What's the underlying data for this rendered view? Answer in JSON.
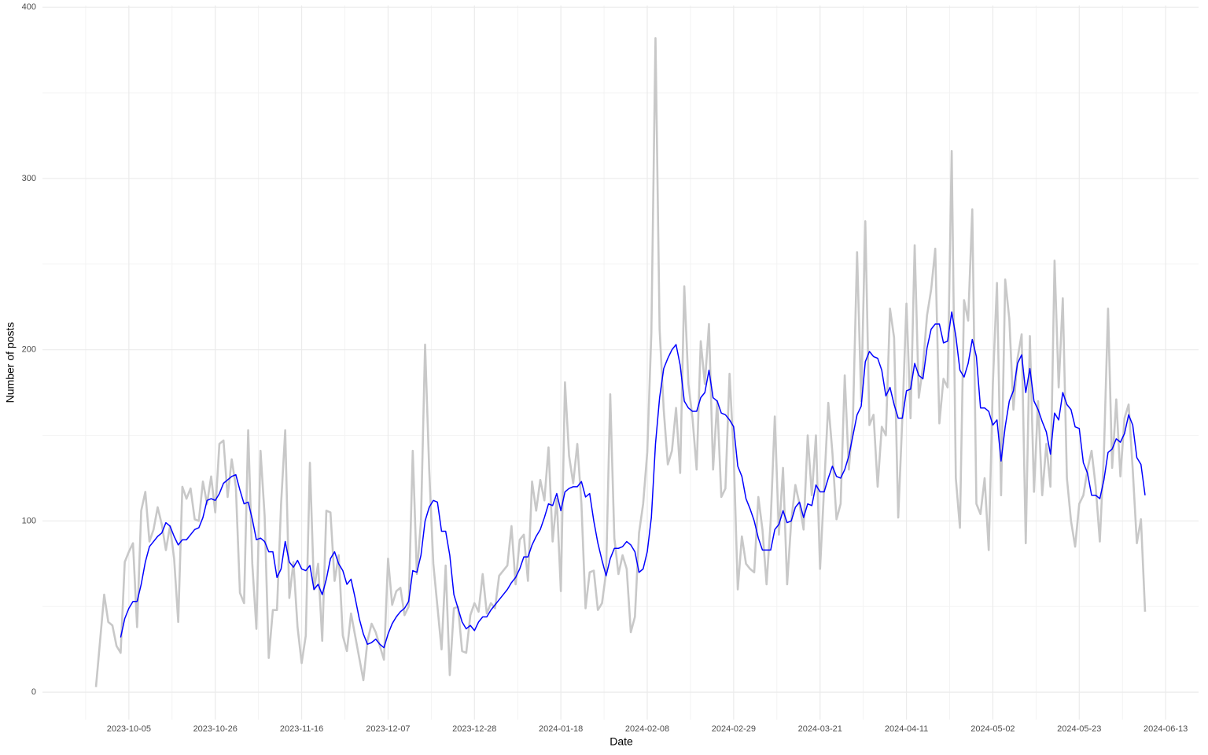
{
  "chart_data": {
    "type": "line",
    "xlabel": "Date",
    "ylabel": "Number of posts",
    "x": [
      "2023-09-27",
      "2023-09-28",
      "2023-09-29",
      "2023-09-30",
      "2023-10-01",
      "2023-10-02",
      "2023-10-03",
      "2023-10-04",
      "2023-10-05",
      "2023-10-06",
      "2023-10-07",
      "2023-10-08",
      "2023-10-09",
      "2023-10-10",
      "2023-10-11",
      "2023-10-12",
      "2023-10-13",
      "2023-10-14",
      "2023-10-15",
      "2023-10-16",
      "2023-10-17",
      "2023-10-18",
      "2023-10-19",
      "2023-10-20",
      "2023-10-21",
      "2023-10-22",
      "2023-10-23",
      "2023-10-24",
      "2023-10-25",
      "2023-10-26",
      "2023-10-27",
      "2023-10-28",
      "2023-10-29",
      "2023-10-30",
      "2023-10-31",
      "2023-11-01",
      "2023-11-02",
      "2023-11-03",
      "2023-11-04",
      "2023-11-05",
      "2023-11-06",
      "2023-11-07",
      "2023-11-08",
      "2023-11-09",
      "2023-11-10",
      "2023-11-11",
      "2023-11-12",
      "2023-11-13",
      "2023-11-14",
      "2023-11-15",
      "2023-11-16",
      "2023-11-17",
      "2023-11-18",
      "2023-11-19",
      "2023-11-20",
      "2023-11-21",
      "2023-11-22",
      "2023-11-23",
      "2023-11-24",
      "2023-11-25",
      "2023-11-26",
      "2023-11-27",
      "2023-11-28",
      "2023-11-29",
      "2023-11-30",
      "2023-12-01",
      "2023-12-02",
      "2023-12-03",
      "2023-12-04",
      "2023-12-05",
      "2023-12-06",
      "2023-12-07",
      "2023-12-08",
      "2023-12-09",
      "2023-12-10",
      "2023-12-11",
      "2023-12-12",
      "2023-12-13",
      "2023-12-14",
      "2023-12-15",
      "2023-12-16",
      "2023-12-17",
      "2023-12-18",
      "2023-12-19",
      "2023-12-20",
      "2023-12-21",
      "2023-12-22",
      "2023-12-23",
      "2023-12-24",
      "2023-12-25",
      "2023-12-26",
      "2023-12-27",
      "2023-12-28",
      "2023-12-29",
      "2023-12-30",
      "2023-12-31",
      "2024-01-01",
      "2024-01-02",
      "2024-01-03",
      "2024-01-04",
      "2024-01-05",
      "2024-01-06",
      "2024-01-07",
      "2024-01-08",
      "2024-01-09",
      "2024-01-10",
      "2024-01-11",
      "2024-01-12",
      "2024-01-13",
      "2024-01-14",
      "2024-01-15",
      "2024-01-16",
      "2024-01-17",
      "2024-01-18",
      "2024-01-19",
      "2024-01-20",
      "2024-01-21",
      "2024-01-22",
      "2024-01-23",
      "2024-01-24",
      "2024-01-25",
      "2024-01-26",
      "2024-01-27",
      "2024-01-28",
      "2024-01-29",
      "2024-01-30",
      "2024-01-31",
      "2024-02-01",
      "2024-02-02",
      "2024-02-03",
      "2024-02-04",
      "2024-02-05",
      "2024-02-06",
      "2024-02-07",
      "2024-02-08",
      "2024-02-09",
      "2024-02-10",
      "2024-02-11",
      "2024-02-12",
      "2024-02-13",
      "2024-02-14",
      "2024-02-15",
      "2024-02-16",
      "2024-02-17",
      "2024-02-18",
      "2024-02-19",
      "2024-02-20",
      "2024-02-21",
      "2024-02-22",
      "2024-02-23",
      "2024-02-24",
      "2024-02-25",
      "2024-02-26",
      "2024-02-27",
      "2024-02-28",
      "2024-02-29",
      "2024-03-01",
      "2024-03-02",
      "2024-03-03",
      "2024-03-04",
      "2024-03-05",
      "2024-03-06",
      "2024-03-07",
      "2024-03-08",
      "2024-03-09",
      "2024-03-10",
      "2024-03-11",
      "2024-03-12",
      "2024-03-13",
      "2024-03-14",
      "2024-03-15",
      "2024-03-16",
      "2024-03-17",
      "2024-03-18",
      "2024-03-19",
      "2024-03-20",
      "2024-03-21",
      "2024-03-22",
      "2024-03-23",
      "2024-03-24",
      "2024-03-25",
      "2024-03-26",
      "2024-03-27",
      "2024-03-28",
      "2024-03-29",
      "2024-03-30",
      "2024-03-31",
      "2024-04-01",
      "2024-04-02",
      "2024-04-03",
      "2024-04-04",
      "2024-04-05",
      "2024-04-06",
      "2024-04-07",
      "2024-04-08",
      "2024-04-09",
      "2024-04-10",
      "2024-04-11",
      "2024-04-12",
      "2024-04-13",
      "2024-04-14",
      "2024-04-15",
      "2024-04-16",
      "2024-04-17",
      "2024-04-18",
      "2024-04-19",
      "2024-04-20",
      "2024-04-21",
      "2024-04-22",
      "2024-04-23",
      "2024-04-24",
      "2024-04-25",
      "2024-04-26",
      "2024-04-27",
      "2024-04-28",
      "2024-04-29",
      "2024-04-30",
      "2024-05-01",
      "2024-05-02",
      "2024-05-03",
      "2024-05-04",
      "2024-05-05",
      "2024-05-06",
      "2024-05-07",
      "2024-05-08",
      "2024-05-09",
      "2024-05-10",
      "2024-05-11",
      "2024-05-12",
      "2024-05-13",
      "2024-05-14",
      "2024-05-15",
      "2024-05-16",
      "2024-05-17",
      "2024-05-18",
      "2024-05-19",
      "2024-05-20",
      "2024-05-21",
      "2024-05-22",
      "2024-05-23",
      "2024-05-24",
      "2024-05-25",
      "2024-05-26",
      "2024-05-27",
      "2024-05-28",
      "2024-05-29",
      "2024-05-30",
      "2024-05-31",
      "2024-06-01",
      "2024-06-02",
      "2024-06-03",
      "2024-06-04",
      "2024-06-05",
      "2024-06-06",
      "2024-06-07",
      "2024-06-08"
    ],
    "series": [
      {
        "color": "#c8c8c8",
        "values": [
          3,
          30,
          57,
          41,
          39,
          27,
          23,
          76,
          82,
          87,
          38,
          106,
          117,
          88,
          95,
          108,
          98,
          83,
          97,
          78,
          41,
          120,
          113,
          119,
          101,
          100,
          123,
          110,
          126,
          105,
          145,
          147,
          114,
          136,
          120,
          58,
          52,
          153,
          75,
          37,
          141,
          103,
          20,
          48,
          48,
          110,
          153,
          55,
          76,
          38,
          17,
          33,
          134,
          60,
          75,
          30,
          106,
          105,
          65,
          80,
          33,
          24,
          46,
          33,
          20,
          7,
          30,
          40,
          35,
          27,
          19,
          78,
          51,
          59,
          61,
          45,
          50,
          141,
          69,
          100,
          203,
          130,
          75,
          50,
          25,
          74,
          10,
          49,
          50,
          24,
          23,
          45,
          52,
          47,
          69,
          46,
          52,
          49,
          68,
          71,
          74,
          97,
          63,
          89,
          92,
          65,
          123,
          106,
          124,
          112,
          143,
          88,
          113,
          59,
          181,
          138,
          122,
          145,
          110,
          49,
          70,
          71,
          48,
          52,
          70,
          174,
          90,
          69,
          80,
          72,
          35,
          44,
          93,
          110,
          140,
          210,
          382,
          212,
          165,
          133,
          141,
          166,
          128,
          237,
          180,
          160,
          130,
          205,
          180,
          215,
          130,
          170,
          114,
          119,
          186,
          140,
          60,
          91,
          75,
          72,
          70,
          114,
          95,
          63,
          100,
          161,
          92,
          131,
          63,
          100,
          121,
          110,
          95,
          150,
          115,
          150,
          72,
          120,
          169,
          140,
          101,
          110,
          185,
          130,
          160,
          257,
          170,
          275,
          156,
          162,
          120,
          155,
          150,
          224,
          207,
          102,
          160,
          227,
          160,
          261,
          172,
          190,
          220,
          235,
          259,
          157,
          183,
          178,
          316,
          125,
          96,
          229,
          217,
          282,
          110,
          104,
          125,
          83,
          180,
          239,
          115,
          241,
          218,
          165,
          195,
          209,
          87,
          208,
          117,
          170,
          115,
          145,
          120,
          252,
          178,
          230,
          125,
          100,
          85,
          110,
          115,
          130,
          141,
          120,
          88,
          140,
          224,
          131,
          171,
          126,
          160,
          168,
          130,
          87,
          101,
          47
        ]
      },
      {
        "color": "#0000ff",
        "values": [
          null,
          null,
          null,
          null,
          null,
          null,
          32,
          43,
          49,
          53,
          53,
          63,
          76,
          85,
          88,
          91,
          93,
          99,
          97,
          91,
          86,
          89,
          89,
          92,
          95,
          96,
          102,
          112,
          113,
          112,
          116,
          122,
          124,
          126,
          127,
          118,
          110,
          111,
          101,
          89,
          90,
          88,
          82,
          82,
          67,
          72,
          88,
          76,
          73,
          77,
          72,
          71,
          74,
          60,
          63,
          57,
          66,
          78,
          82,
          75,
          71,
          63,
          66,
          55,
          43,
          34,
          28,
          29,
          31,
          28,
          26,
          34,
          40,
          44,
          47,
          49,
          53,
          71,
          70,
          80,
          100,
          108,
          112,
          111,
          94,
          94,
          80,
          57,
          49,
          41,
          37,
          39,
          36,
          41,
          44,
          44,
          48,
          51,
          54,
          57,
          60,
          64,
          67,
          72,
          79,
          79,
          86,
          91,
          95,
          102,
          110,
          109,
          116,
          106,
          117,
          119,
          120,
          120,
          123,
          114,
          116,
          100,
          87,
          77,
          68,
          78,
          84,
          84,
          85,
          88,
          86,
          82,
          70,
          72,
          82,
          102,
          145,
          172,
          189,
          195,
          200,
          203,
          191,
          170,
          166,
          164,
          164,
          172,
          175,
          188,
          172,
          170,
          163,
          162,
          159,
          155,
          132,
          126,
          113,
          107,
          100,
          90,
          83,
          83,
          83,
          95,
          98,
          106,
          99,
          100,
          108,
          111,
          102,
          110,
          109,
          121,
          117,
          117,
          125,
          132,
          126,
          125,
          130,
          138,
          150,
          162,
          167,
          193,
          199,
          196,
          195,
          188,
          173,
          178,
          168,
          160,
          160,
          176,
          177,
          192,
          185,
          183,
          201,
          212,
          215,
          215,
          204,
          205,
          222,
          208,
          188,
          184,
          192,
          206,
          196,
          166,
          166,
          164,
          156,
          159,
          135,
          155,
          170,
          176,
          192,
          197,
          175,
          189,
          170,
          165,
          158,
          152,
          139,
          163,
          159,
          175,
          168,
          165,
          155,
          154,
          134,
          128,
          115,
          115,
          113,
          124,
          140,
          142,
          148,
          146,
          151,
          162,
          156,
          137,
          133,
          115
        ]
      }
    ],
    "xlim": [
      "2023-09-14",
      "2024-06-21"
    ],
    "xticks": [
      "2023-10-05",
      "2023-10-26",
      "2023-11-16",
      "2023-12-07",
      "2023-12-28",
      "2024-01-18",
      "2024-02-08",
      "2024-02-29",
      "2024-03-21",
      "2024-04-11",
      "2024-05-02",
      "2024-05-23",
      "2024-06-13"
    ],
    "ylim": [
      -16,
      401
    ],
    "yticks": [
      0,
      100,
      200,
      300,
      400
    ],
    "grid": true
  }
}
